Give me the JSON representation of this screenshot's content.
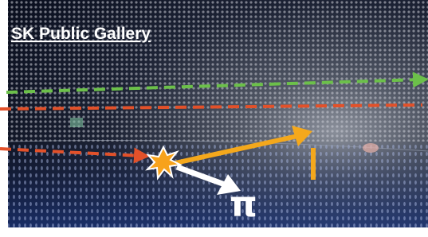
{
  "caption": "SK Public Gallery",
  "labels": {
    "particle": "π"
  }
}
